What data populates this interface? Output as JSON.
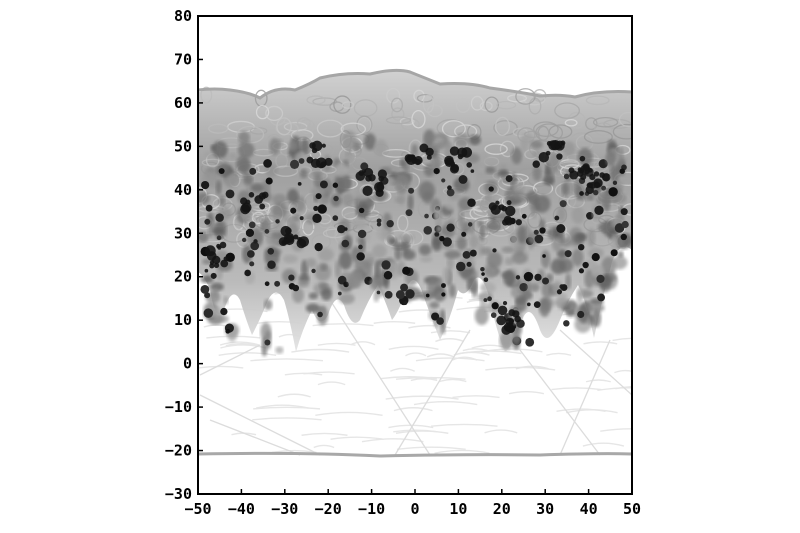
{
  "figure": {
    "type": "simulation-field-plot",
    "colormap": "grayscale",
    "axes": {
      "x_range": [
        -50,
        50
      ],
      "y_range": [
        -30,
        80
      ],
      "x_ticks": [
        "−50",
        "−40",
        "−30",
        "−20",
        "−10",
        "0",
        "10",
        "20",
        "30",
        "40",
        "50"
      ],
      "y_ticks": [
        "80",
        "70",
        "60",
        "50",
        "40",
        "30",
        "20",
        "10",
        "0",
        "−10",
        "−20",
        "−30"
      ]
    },
    "features": {
      "top_interface_y_range": [
        62,
        68
      ],
      "bottom_interface_y": -21,
      "dense_band_y_range": [
        20,
        55
      ],
      "finger_tip_min_y": 3
    }
  }
}
